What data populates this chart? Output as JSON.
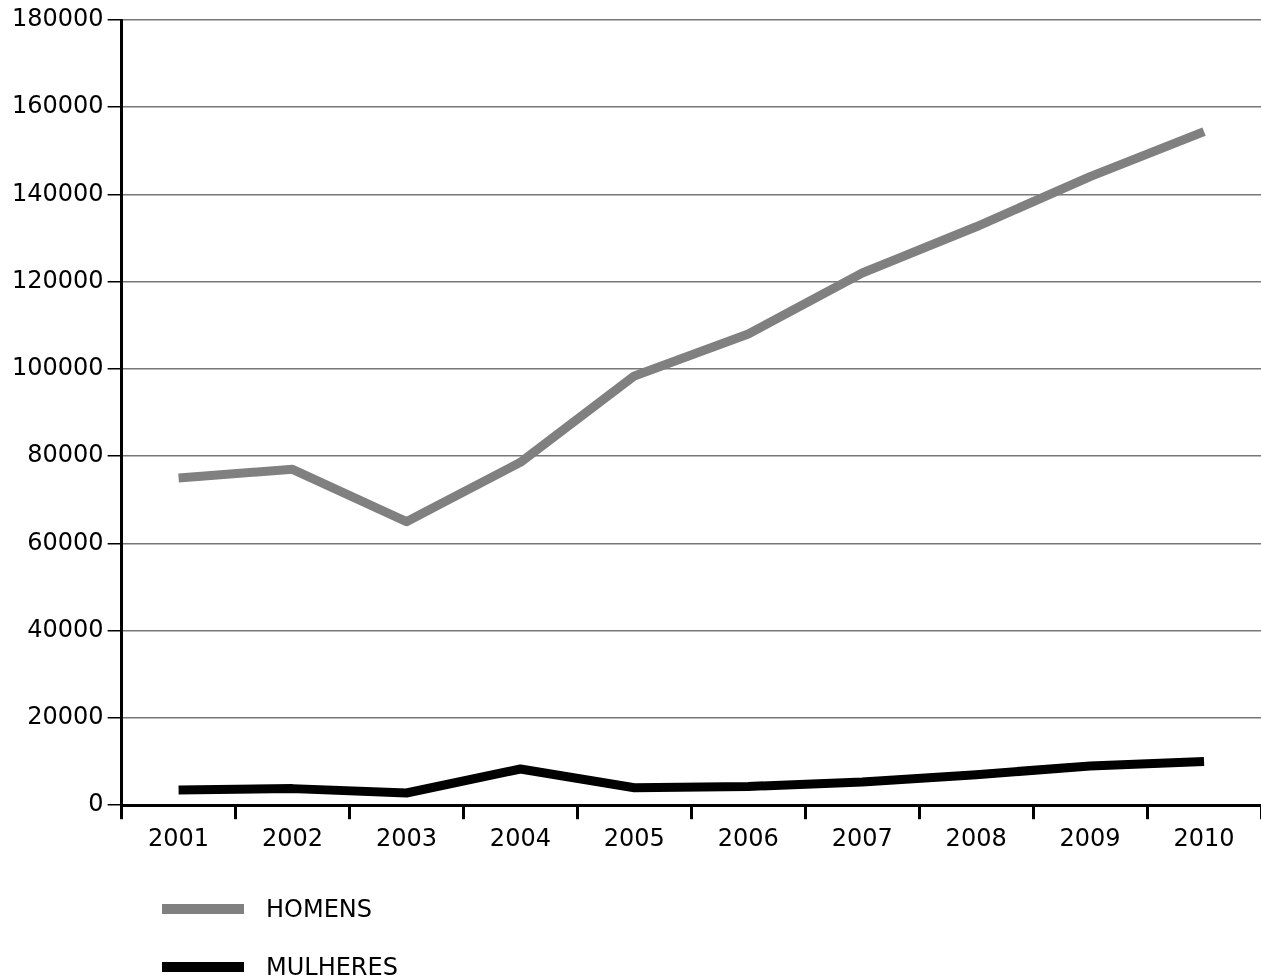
{
  "chart_data": {
    "type": "line",
    "categories": [
      "2001",
      "2002",
      "2003",
      "2004",
      "2005",
      "2006",
      "2007",
      "2008",
      "2009",
      "2010"
    ],
    "series": [
      {
        "name": "HOMENS",
        "color": "#808080",
        "values": [
          75000,
          77000,
          65000,
          78600,
          98400,
          108000,
          122000,
          132600,
          144100,
          154400
        ]
      },
      {
        "name": "MULHERES",
        "color": "#000000",
        "values": [
          3500,
          3800,
          2800,
          8300,
          4000,
          4300,
          5300,
          7000,
          9000,
          10000
        ]
      }
    ],
    "ylim": [
      0,
      180000
    ],
    "yticks": [
      0,
      20000,
      40000,
      60000,
      80000,
      100000,
      120000,
      140000,
      160000,
      180000
    ],
    "grid": "y",
    "legend": "bottom",
    "marker": "none",
    "line_style": "solid"
  }
}
